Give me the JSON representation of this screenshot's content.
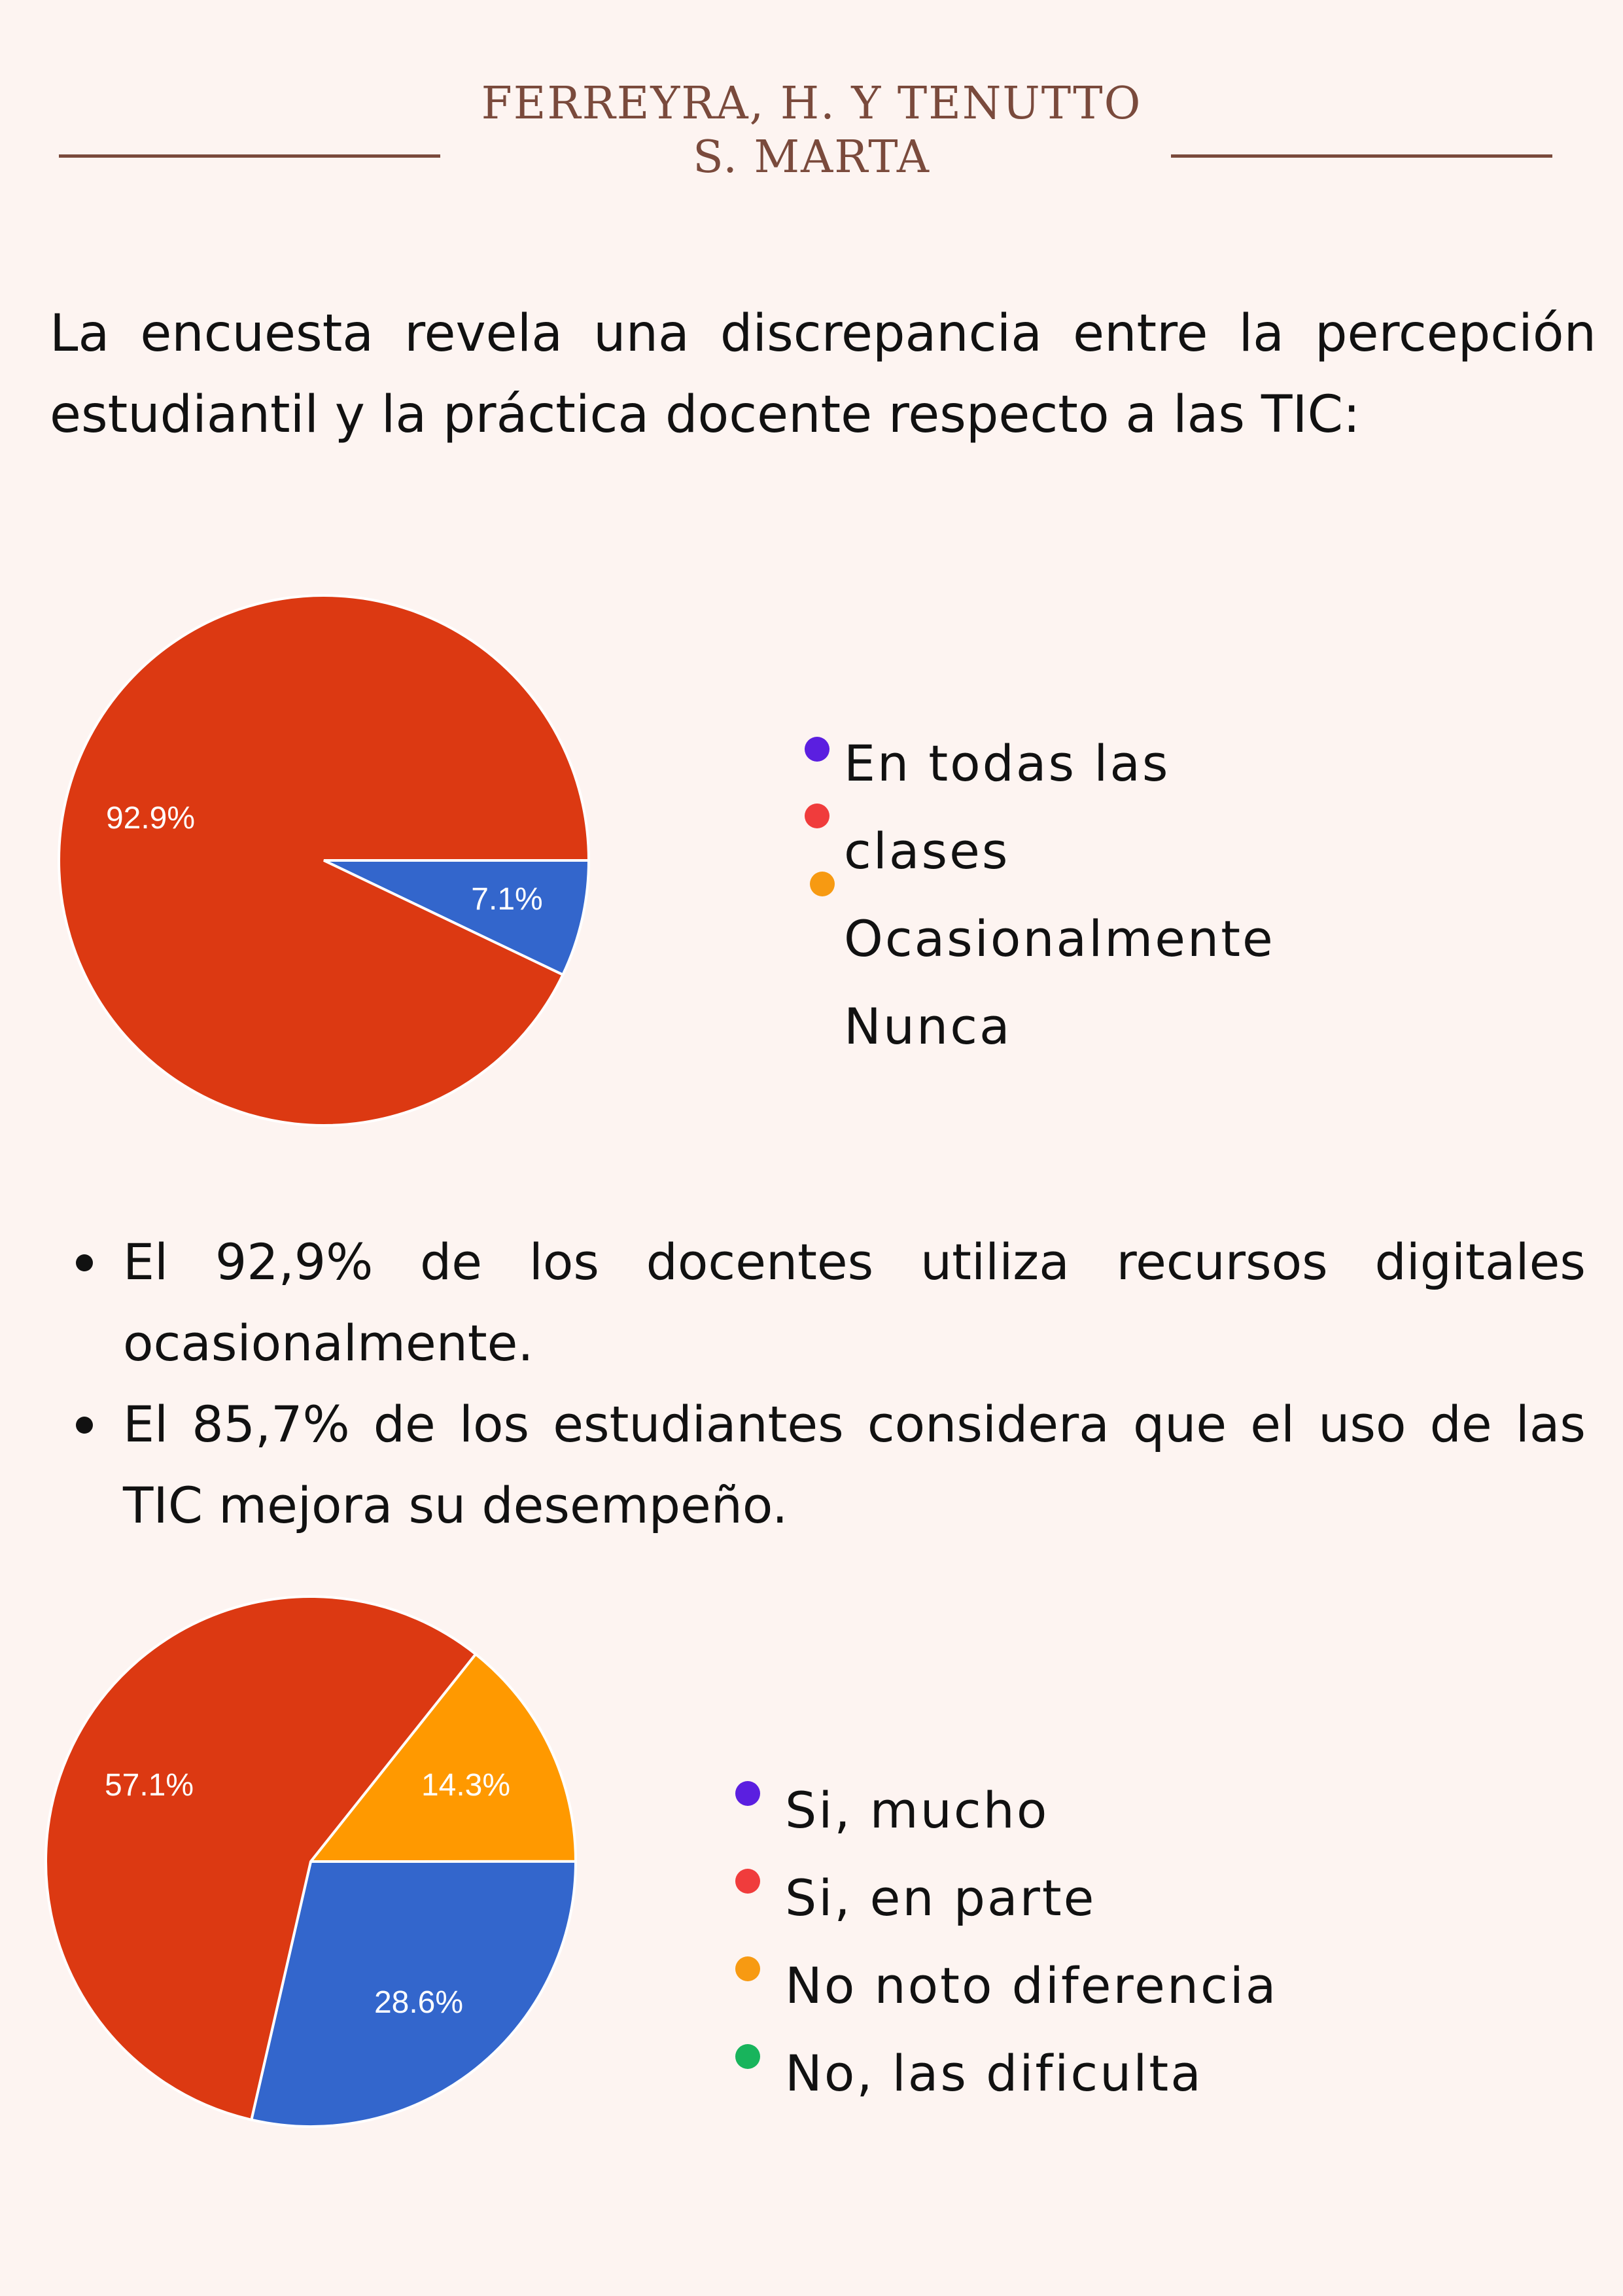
{
  "header": {
    "line1": "FERREYRA, H. Y TENUTTO",
    "line2": "S. MARTA"
  },
  "intro": "La encuesta revela una discrepancia entre la percepción estudiantil y la práctica docente respecto a las TIC:",
  "chart_data": [
    {
      "type": "pie",
      "slices": [
        {
          "label": "92.9%",
          "value": 92.9,
          "color": "#dc3912"
        },
        {
          "label": "7.1%",
          "value": 7.1,
          "color": "#3366cc"
        }
      ],
      "legend": [
        {
          "label": "En todas las clases",
          "color": "#5b1fe0"
        },
        {
          "label": "",
          "color": "#f03c3c"
        },
        {
          "label": "Ocasionalmente",
          "color": "#f79a12"
        },
        {
          "label": "Nunca",
          "color": null
        }
      ]
    },
    {
      "type": "pie",
      "slices": [
        {
          "label": "14.3%",
          "value": 14.3,
          "color": "#ff9900"
        },
        {
          "label": "28.6%",
          "value": 28.6,
          "color": "#3366cc"
        },
        {
          "label": "57.1%",
          "value": 57.1,
          "color": "#dc3912"
        }
      ],
      "legend": [
        {
          "label": "Si, mucho",
          "color": "#5b1fe0"
        },
        {
          "label": "Si, en parte",
          "color": "#f03c3c"
        },
        {
          "label": "No noto diferencia",
          "color": "#f79a12"
        },
        {
          "label": "No, las dificulta",
          "color": "#18b45c"
        }
      ]
    }
  ],
  "bullets": [
    "El 92,9% de los docentes utiliza recursos digitales ocasionalmente.",
    "El 85,7% de los estudiantes considera que el uso de las TIC mejora su desempeño."
  ]
}
